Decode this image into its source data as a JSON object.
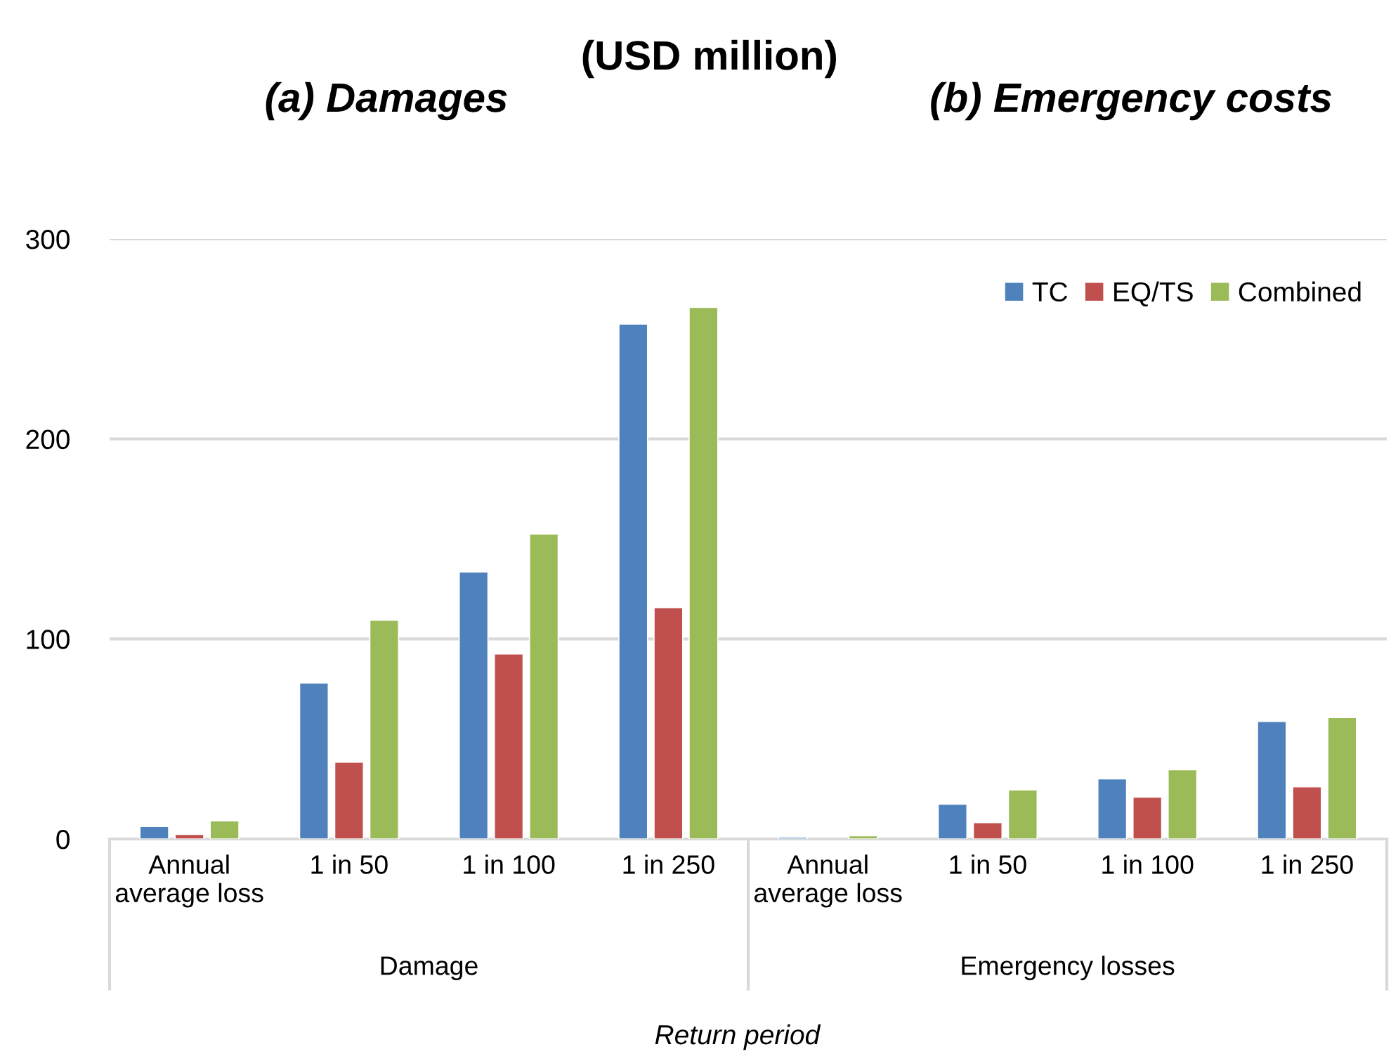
{
  "chart_data": {
    "type": "bar",
    "title": "(USD million)",
    "categories": [
      "Annual\naverage loss",
      "1 in 50",
      "1 in 100",
      "1 in 250",
      "Annual\naverage loss",
      "1 in 50",
      "1 in 100",
      "1 in 250"
    ],
    "series": [
      {
        "name": "TC",
        "color": "#4f81bd",
        "values": [
          6.3,
          78,
          133.5,
          257.4,
          0.9,
          17.4,
          30.1,
          58.8
        ]
      },
      {
        "name": "EQ/TS",
        "color": "#c0504d",
        "values": [
          2.3,
          38.4,
          92.5,
          115.7,
          null,
          8.2,
          20.9,
          26.1
        ]
      },
      {
        "name": "Combined",
        "color": "#9bbb59",
        "values": [
          9.1,
          109.4,
          152.5,
          265.8,
          1.6,
          24.5,
          34.6,
          60.7
        ]
      }
    ],
    "xlabel": "Return period",
    "annotations": [
      "(a) Damages",
      "(b) Emergency costs",
      "Damage",
      "Emergency losses"
    ],
    "ylim": [
      0,
      300
    ],
    "yticks": [
      0,
      100,
      200,
      300
    ],
    "grid": "y",
    "legend": "top right"
  }
}
